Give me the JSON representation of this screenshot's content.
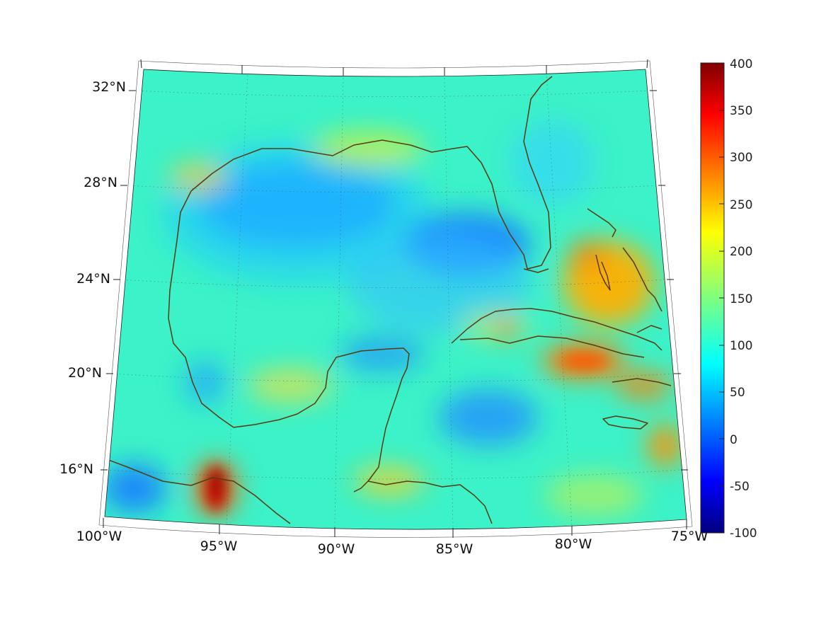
{
  "map": {
    "lon_labels": [
      "100°W",
      "95°W",
      "90°W",
      "85°W",
      "80°W",
      "75°W"
    ],
    "lat_labels": [
      "32°N",
      "28°N",
      "24°N",
      "20°N",
      "16°N"
    ],
    "extent": {
      "lon_min": -100,
      "lon_max": -75,
      "lat_min": 14.5,
      "lat_max": 33
    },
    "grid": true,
    "grid_style": "dotted",
    "coastline_color": "#5a3a10",
    "colormap": "jet"
  },
  "colorbar": {
    "ticks": [
      "400",
      "350",
      "300",
      "250",
      "200",
      "150",
      "100",
      "50",
      "0",
      "-50",
      "-100"
    ],
    "min": -100,
    "max": 400,
    "placement": "right"
  },
  "field_features": [
    {
      "region": "central Gulf of Mexico",
      "level": "low (~30-50)"
    },
    {
      "region": "eastern Gulf off SW Florida",
      "level": "low (~30-50)"
    },
    {
      "region": "Gulf of Tehuantepec",
      "level": "high (~350-400)"
    },
    {
      "region": "south of Cuba",
      "level": "high (~280-320)"
    },
    {
      "region": "Bahamas",
      "level": "high (~250-280)"
    },
    {
      "region": "south of Hispaniola",
      "level": "high (~250-280)"
    }
  ]
}
